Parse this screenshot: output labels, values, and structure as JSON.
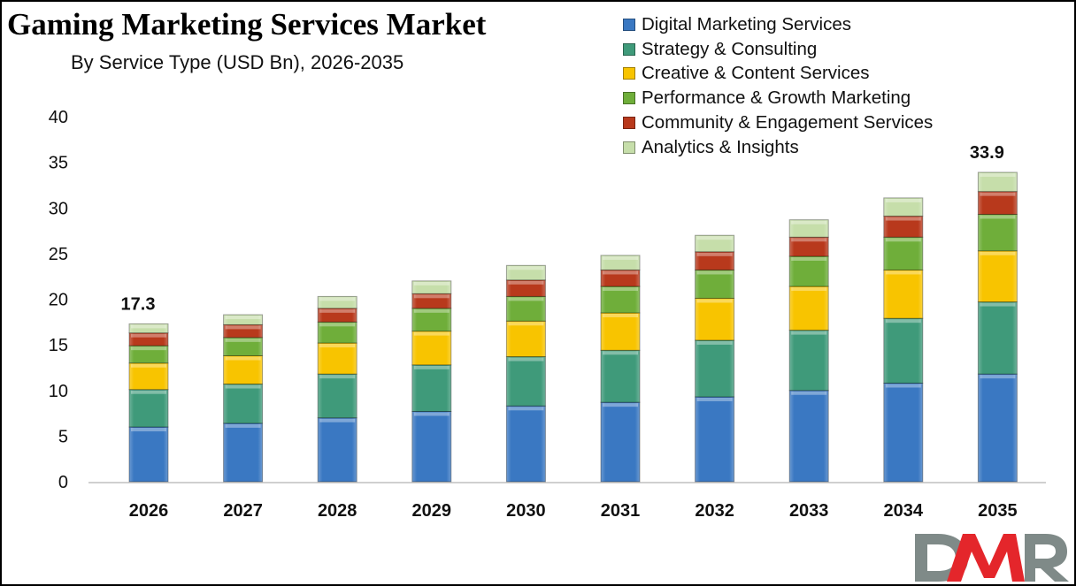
{
  "chart_data": {
    "type": "bar",
    "stacked": true,
    "title": "Gaming Marketing Services Market",
    "subtitle": "By Service Type (USD Bn), 2026-2035",
    "xlabel": "",
    "ylabel": "",
    "ylim": [
      0,
      40
    ],
    "yticks": [
      0,
      5,
      10,
      15,
      20,
      25,
      30,
      35,
      40
    ],
    "grid": false,
    "legend_position": "top-right",
    "categories": [
      "2026",
      "2027",
      "2028",
      "2029",
      "2030",
      "2031",
      "2032",
      "2033",
      "2034",
      "2035"
    ],
    "series": [
      {
        "name": "Digital Marketing Services",
        "color": "#3a78c2",
        "values": [
          6.0,
          6.4,
          7.0,
          7.7,
          8.3,
          8.7,
          9.3,
          10.0,
          10.8,
          11.8
        ]
      },
      {
        "name": "Strategy & Consulting",
        "color": "#3f9a7a",
        "values": [
          4.1,
          4.3,
          4.8,
          5.1,
          5.4,
          5.7,
          6.2,
          6.6,
          7.1,
          7.9
        ]
      },
      {
        "name": "Creative & Content Services",
        "color": "#f8c400",
        "values": [
          2.9,
          3.1,
          3.4,
          3.7,
          3.9,
          4.1,
          4.6,
          4.8,
          5.3,
          5.6
        ]
      },
      {
        "name": "Performance & Growth Marketing",
        "color": "#6fae3a",
        "values": [
          1.9,
          2.0,
          2.3,
          2.5,
          2.7,
          2.9,
          3.1,
          3.3,
          3.6,
          4.0
        ]
      },
      {
        "name": "Community & Engagement Services",
        "color": "#b8391c",
        "values": [
          1.4,
          1.4,
          1.5,
          1.6,
          1.8,
          1.8,
          2.0,
          2.1,
          2.3,
          2.5
        ]
      },
      {
        "name": "Analytics & Insights",
        "color": "#c6deaa",
        "values": [
          1.0,
          1.1,
          1.3,
          1.4,
          1.6,
          1.6,
          1.8,
          1.9,
          2.0,
          2.1
        ]
      }
    ],
    "annotations": [
      {
        "category": "2026",
        "text": "17.3"
      },
      {
        "category": "2035",
        "text": "33.9"
      }
    ]
  },
  "branding": {
    "logo_text_d": "D",
    "logo_text_m": "M",
    "logo_text_r": "R",
    "logo_gray": "#7f8a88",
    "logo_red": "#e4262b"
  }
}
